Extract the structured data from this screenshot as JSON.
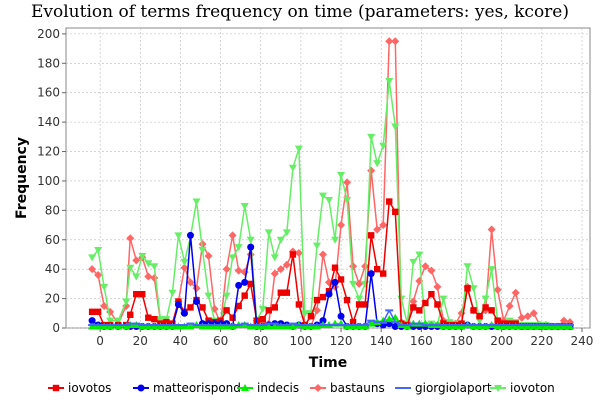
{
  "chart_data": {
    "type": "line",
    "title": "Evolution of terms frequency on time (parameters: yes, kcore)",
    "xlabel": "Time",
    "ylabel": "Frequency",
    "xlim": [
      -17,
      244
    ],
    "ylim": [
      0,
      204
    ],
    "xticks": [
      0,
      20,
      40,
      60,
      80,
      100,
      120,
      140,
      160,
      180,
      200,
      220,
      240
    ],
    "yticks": [
      0,
      20,
      40,
      60,
      80,
      100,
      120,
      140,
      160,
      180,
      200
    ],
    "grid": true,
    "legend_position": "bottom",
    "series": [
      {
        "name": "bastauns",
        "color": "#ff6666",
        "marker": "diamond",
        "x": [
          -4,
          -1,
          2,
          5,
          9,
          13,
          15,
          18,
          21,
          24,
          27,
          30,
          33,
          36,
          39,
          42,
          45,
          48,
          51,
          54,
          57,
          60,
          63,
          66,
          69,
          72,
          75,
          78,
          81,
          84,
          87,
          90,
          93,
          96,
          99,
          102,
          105,
          108,
          111,
          114,
          117,
          120,
          123,
          126,
          129,
          132,
          135,
          138,
          141,
          144,
          147,
          150,
          153,
          156,
          159,
          162,
          165,
          168,
          171,
          174,
          177,
          180,
          183,
          186,
          189,
          192,
          195,
          198,
          201,
          204,
          207,
          210,
          213,
          216,
          219,
          222,
          225,
          228,
          231,
          234
        ],
        "y": [
          40,
          36,
          15,
          11,
          3,
          15,
          61,
          46,
          48,
          35,
          34,
          5,
          4,
          2,
          18,
          41,
          31,
          27,
          57,
          49,
          13,
          3,
          40,
          63,
          39,
          38,
          50,
          5,
          4,
          3,
          37,
          40,
          43,
          52,
          51,
          1,
          1,
          12,
          50,
          31,
          28,
          70,
          99,
          42,
          30,
          42,
          107,
          67,
          70,
          195,
          195,
          4,
          3,
          18,
          32,
          42,
          39,
          28,
          5,
          3,
          3,
          10,
          28,
          12,
          8,
          12,
          67,
          26,
          5,
          15,
          24,
          7,
          8,
          10,
          2,
          2,
          1,
          1,
          5,
          4
        ]
      },
      {
        "name": "iovoton",
        "color": "#66ee66",
        "marker": "triangle-down",
        "x": [
          -4,
          -1,
          2,
          5,
          9,
          13,
          15,
          18,
          21,
          24,
          27,
          30,
          33,
          36,
          39,
          42,
          45,
          48,
          51,
          54,
          57,
          60,
          63,
          66,
          69,
          72,
          75,
          78,
          81,
          84,
          87,
          90,
          93,
          96,
          99,
          102,
          105,
          108,
          111,
          114,
          117,
          120,
          123,
          126,
          129,
          132,
          135,
          138,
          141,
          144,
          147,
          150,
          153,
          156,
          159,
          162,
          165,
          168,
          171,
          174,
          177,
          180,
          183,
          186,
          189,
          192,
          195,
          198,
          201,
          204,
          207,
          210,
          213,
          216,
          219,
          222,
          225,
          228,
          231,
          234
        ],
        "y": [
          48,
          53,
          28,
          5,
          5,
          18,
          41,
          35,
          49,
          44,
          42,
          6,
          6,
          24,
          63,
          45,
          62,
          86,
          53,
          22,
          5,
          3,
          22,
          48,
          55,
          83,
          60,
          5,
          13,
          65,
          48,
          60,
          65,
          109,
          122,
          10,
          10,
          56,
          90,
          87,
          60,
          104,
          87,
          30,
          20,
          30,
          130,
          112,
          124,
          168,
          137,
          20,
          3,
          45,
          50,
          2,
          3,
          2,
          20,
          4,
          3,
          3,
          42,
          27,
          5,
          20,
          40,
          5,
          3,
          5,
          4,
          2,
          2,
          2,
          2,
          2,
          1,
          1,
          1,
          1
        ]
      },
      {
        "name": "iovotos",
        "color": "#ee0000",
        "marker": "square",
        "x": [
          -4,
          -1,
          2,
          5,
          9,
          13,
          15,
          18,
          21,
          24,
          27,
          30,
          33,
          36,
          39,
          42,
          45,
          48,
          51,
          54,
          57,
          60,
          63,
          66,
          69,
          72,
          75,
          78,
          81,
          84,
          87,
          90,
          93,
          96,
          99,
          102,
          105,
          108,
          111,
          114,
          117,
          120,
          123,
          126,
          129,
          132,
          135,
          138,
          141,
          144,
          147,
          150,
          153,
          156,
          159,
          162,
          165,
          168,
          171,
          174,
          177,
          180,
          183,
          186,
          189,
          192,
          195,
          198,
          201,
          204,
          207,
          210,
          213,
          216,
          219,
          222,
          225,
          228,
          231,
          234
        ],
        "y": [
          11,
          11,
          2,
          2,
          2,
          2,
          9,
          23,
          23,
          7,
          6,
          3,
          4,
          3,
          18,
          11,
          14,
          19,
          14,
          5,
          4,
          5,
          12,
          7,
          15,
          22,
          30,
          5,
          6,
          12,
          14,
          24,
          24,
          50,
          16,
          2,
          8,
          19,
          21,
          25,
          41,
          33,
          19,
          4,
          16,
          16,
          63,
          40,
          37,
          86,
          79,
          3,
          2,
          14,
          12,
          17,
          23,
          16,
          3,
          2,
          2,
          3,
          27,
          12,
          8,
          14,
          12,
          5,
          3,
          3,
          3,
          1,
          1,
          1,
          1,
          1,
          1,
          1,
          1,
          1
        ]
      },
      {
        "name": "matteorispond",
        "color": "#0000ee",
        "marker": "circle",
        "x": [
          -4,
          -1,
          2,
          5,
          9,
          13,
          15,
          18,
          21,
          24,
          27,
          30,
          33,
          36,
          39,
          42,
          45,
          48,
          51,
          54,
          57,
          60,
          63,
          66,
          69,
          72,
          75,
          78,
          81,
          84,
          87,
          90,
          93,
          96,
          99,
          102,
          105,
          108,
          111,
          114,
          117,
          120,
          123,
          126,
          129,
          132,
          135,
          138,
          141,
          144,
          147,
          150,
          153,
          156,
          159,
          162,
          165,
          168,
          171,
          174,
          177,
          180,
          183,
          186,
          189,
          192,
          195,
          198,
          201,
          204,
          207,
          210,
          213,
          216,
          219,
          222,
          225,
          228,
          231,
          234
        ],
        "y": [
          5,
          2,
          1,
          1,
          1,
          1,
          1,
          1,
          1,
          1,
          1,
          1,
          1,
          1,
          16,
          10,
          63,
          18,
          3,
          3,
          3,
          3,
          3,
          1,
          29,
          31,
          55,
          1,
          1,
          2,
          3,
          3,
          2,
          1,
          2,
          1,
          1,
          2,
          5,
          23,
          31,
          8,
          1,
          1,
          1,
          1,
          37,
          3,
          2,
          3,
          1,
          1,
          1,
          1,
          1,
          1,
          1,
          1,
          1,
          1,
          1,
          1,
          2,
          1,
          1,
          1,
          1,
          1,
          1,
          1,
          1,
          1,
          1,
          1,
          1,
          1,
          1,
          1,
          1,
          1
        ]
      },
      {
        "name": "indecis",
        "color": "#00ee00",
        "marker": "triangle",
        "x": [
          -4,
          -1,
          2,
          5,
          9,
          13,
          15,
          18,
          21,
          24,
          27,
          30,
          33,
          36,
          39,
          42,
          45,
          48,
          51,
          54,
          57,
          60,
          63,
          66,
          69,
          72,
          75,
          78,
          81,
          84,
          87,
          90,
          93,
          96,
          99,
          102,
          105,
          108,
          111,
          114,
          117,
          120,
          123,
          126,
          129,
          132,
          135,
          138,
          141,
          144,
          147,
          150,
          153,
          156,
          159,
          162,
          165,
          168,
          171,
          174,
          177,
          180,
          183,
          186,
          189,
          192,
          195,
          198,
          201,
          204,
          207,
          210,
          213,
          216,
          219,
          222,
          225,
          228,
          231,
          234
        ],
        "y": [
          1,
          1,
          1,
          1,
          1,
          1,
          2,
          2,
          1,
          1,
          1,
          1,
          1,
          1,
          1,
          1,
          1,
          2,
          1,
          1,
          1,
          1,
          1,
          1,
          2,
          2,
          1,
          1,
          1,
          1,
          1,
          1,
          1,
          1,
          2,
          1,
          1,
          1,
          2,
          2,
          3,
          3,
          1,
          1,
          1,
          1,
          3,
          4,
          5,
          6,
          7,
          2,
          1,
          3,
          3,
          3,
          2,
          2,
          1,
          1,
          1,
          1,
          2,
          1,
          1,
          1,
          2,
          1,
          1,
          1,
          1,
          1,
          1,
          1,
          1,
          1,
          1,
          1,
          1,
          1
        ]
      },
      {
        "name": "giorgiolaport",
        "color": "#4466ff",
        "marker": "dash",
        "x": [
          -4,
          -1,
          2,
          5,
          9,
          13,
          15,
          18,
          21,
          24,
          27,
          30,
          33,
          36,
          39,
          42,
          45,
          48,
          51,
          54,
          57,
          60,
          63,
          66,
          69,
          72,
          75,
          78,
          81,
          84,
          87,
          90,
          93,
          96,
          99,
          102,
          105,
          108,
          111,
          114,
          117,
          120,
          123,
          126,
          129,
          132,
          135,
          138,
          141,
          144,
          147,
          150,
          153,
          156,
          159,
          162,
          165,
          168,
          171,
          174,
          177,
          180,
          183,
          186,
          189,
          192,
          195,
          198,
          201,
          204,
          207,
          210,
          213,
          216,
          219,
          222,
          225,
          228,
          231,
          234
        ],
        "y": [
          2,
          2,
          2,
          2,
          2,
          2,
          3,
          3,
          2,
          2,
          2,
          2,
          2,
          2,
          2,
          2,
          3,
          2,
          2,
          2,
          2,
          2,
          2,
          2,
          2,
          3,
          2,
          2,
          2,
          3,
          3,
          2,
          2,
          3,
          2,
          2,
          2,
          2,
          2,
          2,
          2,
          2,
          2,
          2,
          2,
          2,
          5,
          4,
          4,
          12,
          4,
          2,
          2,
          3,
          3,
          2,
          2,
          2,
          2,
          2,
          2,
          2,
          2,
          2,
          2,
          2,
          2,
          2,
          2,
          2,
          2,
          2,
          2,
          2,
          2,
          2,
          2,
          2,
          2,
          2
        ]
      }
    ],
    "legend": [
      {
        "name": "iovotos",
        "color": "#ee0000",
        "marker": "square"
      },
      {
        "name": "matteorispond",
        "color": "#0000ee",
        "marker": "circle"
      },
      {
        "name": "indecis",
        "color": "#00ee00",
        "marker": "triangle"
      },
      {
        "name": "bastauns",
        "color": "#ff6666",
        "marker": "diamond"
      },
      {
        "name": "giorgiolaport",
        "color": "#4466ff",
        "marker": "dash"
      },
      {
        "name": "iovoton",
        "color": "#66ee66",
        "marker": "triangle-down"
      }
    ]
  }
}
